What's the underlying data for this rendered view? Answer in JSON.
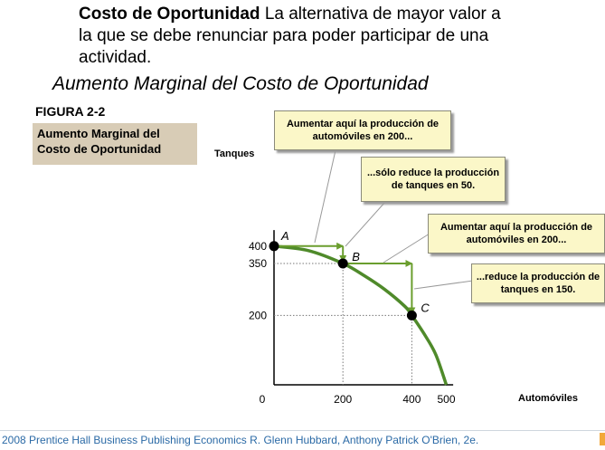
{
  "header": {
    "term": "Costo de Oportunidad",
    "definition": " La alternativa de mayor valor a la que se debe renunciar  para poder participar de una actividad.",
    "subtitle": "Aumento Marginal del Costo de Oportunidad"
  },
  "figure": {
    "label": "FIGURA 2-2",
    "caption": "Aumento Marginal del Costo de Oportunidad"
  },
  "callouts": [
    "Aumentar aquí  la producción de automóviles en 200...",
    "...sólo reduce la producción de tanques en 50.",
    "Aumentar aquí  la producción de automóviles en 200...",
    "...reduce la producción de tanques en 150."
  ],
  "footer": {
    "text": "2008 Prentice Hall Business Publishing   Economics  R. Glenn Hubbard, Anthony Patrick O'Brien, 2e."
  },
  "chart_data": {
    "type": "line",
    "xlabel": "Automóviles",
    "ylabel": "Tanques",
    "xlim": [
      0,
      520
    ],
    "ylim": [
      0,
      420
    ],
    "x_ticks": [
      "0",
      "200",
      "400",
      "500"
    ],
    "y_ticks": [
      "400",
      "350",
      "200"
    ],
    "series": [
      {
        "x": [
          0,
          100,
          200,
          260,
          320,
          380,
          400,
          440,
          470,
          500
        ],
        "y": [
          400,
          387,
          350,
          316,
          276,
          226,
          200,
          140,
          86,
          0
        ],
        "color": "#4f8a2a"
      }
    ],
    "points": [
      {
        "label": "A",
        "x": 0,
        "y": 400
      },
      {
        "label": "B",
        "x": 200,
        "y": 350
      },
      {
        "label": "C",
        "x": 400,
        "y": 200
      }
    ],
    "arrow_color": "#6a9e2e"
  }
}
